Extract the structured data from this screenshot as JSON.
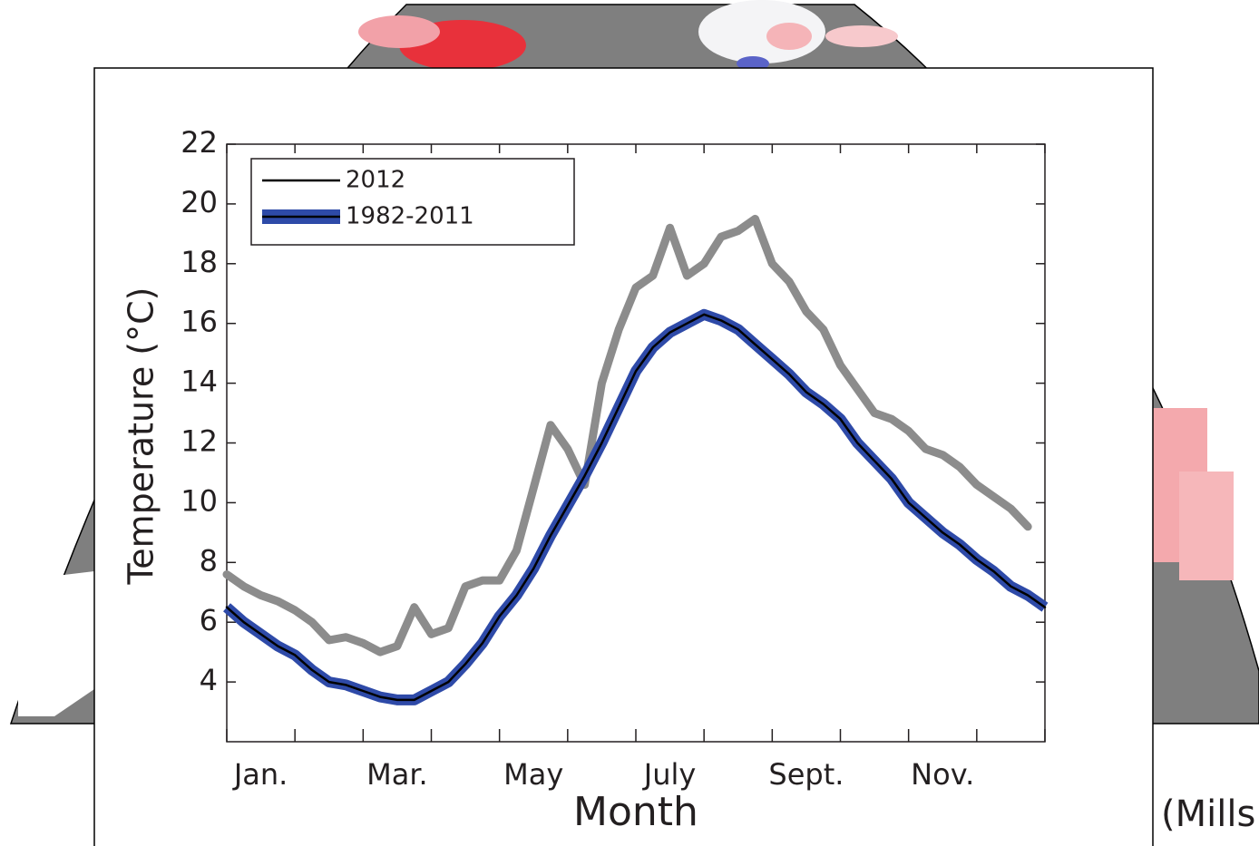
{
  "chart_data": {
    "type": "line",
    "title": null,
    "xlabel": "Month",
    "ylabel": "Temperature (°C)",
    "categories": [
      "Jan.",
      null,
      "Mar.",
      null,
      "May",
      null,
      "July",
      null,
      "Sept.",
      null,
      "Nov.",
      null
    ],
    "x": [
      0,
      0.25,
      0.5,
      0.75,
      1,
      1.25,
      1.5,
      1.75,
      2,
      2.25,
      2.5,
      2.75,
      3,
      3.25,
      3.5,
      3.75,
      4,
      4.25,
      4.5,
      4.75,
      5,
      5.25,
      5.5,
      5.75,
      6,
      6.25,
      6.5,
      6.75,
      7,
      7.25,
      7.5,
      7.75,
      8,
      8.25,
      8.5,
      8.75,
      9,
      9.25,
      9.5,
      9.75,
      10,
      10.25,
      10.5,
      10.75,
      11,
      11.25,
      11.5,
      11.75,
      12
    ],
    "xlim": [
      0,
      12
    ],
    "ylim": [
      2,
      22
    ],
    "yticks": [
      4,
      6,
      8,
      10,
      12,
      14,
      16,
      18,
      20,
      22
    ],
    "legend": "upper left",
    "series": [
      {
        "name": "2012",
        "color": "#8c8c8c",
        "legend_color": "#000000",
        "values": [
          7.6,
          7.2,
          6.9,
          6.7,
          6.4,
          6.0,
          5.4,
          5.5,
          5.3,
          5.0,
          5.2,
          6.5,
          5.6,
          5.8,
          7.2,
          7.4,
          7.4,
          8.4,
          10.5,
          12.6,
          11.8,
          10.6,
          14.0,
          15.8,
          17.2,
          17.6,
          19.2,
          17.6,
          18.0,
          18.9,
          19.1,
          19.5,
          18.0,
          17.4,
          16.4,
          15.8,
          14.6,
          13.8,
          13.0,
          12.8,
          12.4,
          11.8,
          11.6,
          11.2,
          10.6,
          10.2,
          9.8,
          9.2,
          null
        ]
      },
      {
        "name": "1982-2011",
        "color": "#000000",
        "band_color": "#2e4aa8",
        "values": [
          6.5,
          6.0,
          5.6,
          5.2,
          4.9,
          4.4,
          4.0,
          3.9,
          3.7,
          3.5,
          3.4,
          3.4,
          3.7,
          4.0,
          4.6,
          5.3,
          6.2,
          6.9,
          7.8,
          8.9,
          9.9,
          10.9,
          12.0,
          13.2,
          14.4,
          15.2,
          15.7,
          16.0,
          16.3,
          16.1,
          15.8,
          15.3,
          14.8,
          14.3,
          13.7,
          13.3,
          12.8,
          12.0,
          11.4,
          10.8,
          10.0,
          9.5,
          9.0,
          8.6,
          8.1,
          7.7,
          7.2,
          6.9,
          6.5
        ]
      }
    ]
  },
  "caption": "(Mills"
}
